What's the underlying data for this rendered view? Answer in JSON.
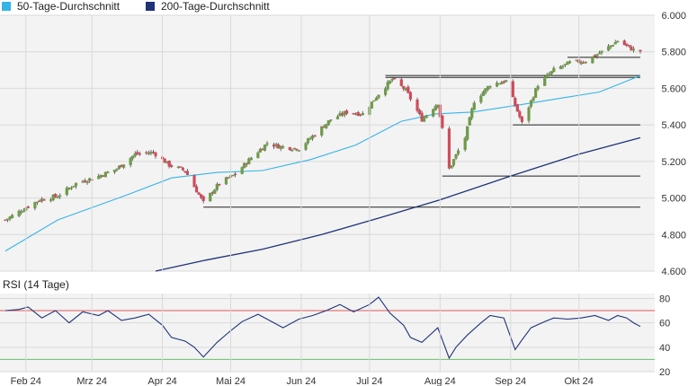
{
  "legend": {
    "ma50_label": "50-Tage-Durchschnitt",
    "ma200_label": "200-Tage-Durchschnitt"
  },
  "rsi_panel": {
    "title": "RSI (14 Tage)"
  },
  "colors": {
    "ma50": "#35b4e6",
    "ma200": "#1f3378",
    "candle_up": "#6f9a4a",
    "candle_down": "#d04a5a",
    "wick": "#444444",
    "rsi_line": "#1f3378",
    "rsi_upper": "#e05a5a",
    "rsi_lower": "#69c069",
    "support_line": "#222222",
    "grid": "#d9d9d9",
    "panel_bg": "#f3f3f3"
  },
  "chart_data": [
    {
      "type": "candlestick",
      "title": "",
      "xlabel": "",
      "ylabel": "",
      "x_start": "2024-01-23",
      "x_end": "2024-10-28",
      "ylim": [
        4600,
        6000
      ],
      "y_ticks": [
        "4.600",
        "4.800",
        "5.000",
        "5.200",
        "5.400",
        "5.600",
        "5.800",
        "6.000"
      ],
      "x_ticks": [
        {
          "date": "2024-02-01",
          "label": "Feb 24"
        },
        {
          "date": "2024-03-01",
          "label": "Mrz 24"
        },
        {
          "date": "2024-04-01",
          "label": "Apr 24"
        },
        {
          "date": "2024-05-01",
          "label": "Mai 24"
        },
        {
          "date": "2024-06-01",
          "label": "Jun 24"
        },
        {
          "date": "2024-07-01",
          "label": "Jul 24"
        },
        {
          "date": "2024-08-01",
          "label": "Aug 24"
        },
        {
          "date": "2024-09-01",
          "label": "Sep 24"
        },
        {
          "date": "2024-10-01",
          "label": "Okt 24"
        }
      ],
      "grid": true,
      "legend_position": "top-left",
      "close_anchors": [
        [
          "2024-01-23",
          4880
        ],
        [
          "2024-01-31",
          4940
        ],
        [
          "2024-02-07",
          4990
        ],
        [
          "2024-02-15",
          5010
        ],
        [
          "2024-02-23",
          5080
        ],
        [
          "2024-03-04",
          5120
        ],
        [
          "2024-03-12",
          5160
        ],
        [
          "2024-03-20",
          5240
        ],
        [
          "2024-03-28",
          5250
        ],
        [
          "2024-04-04",
          5180
        ],
        [
          "2024-04-11",
          5150
        ],
        [
          "2024-04-19",
          4975
        ],
        [
          "2024-04-26",
          5080
        ],
        [
          "2024-05-03",
          5130
        ],
        [
          "2024-05-10",
          5220
        ],
        [
          "2024-05-17",
          5300
        ],
        [
          "2024-05-23",
          5280
        ],
        [
          "2024-05-31",
          5270
        ],
        [
          "2024-06-07",
          5350
        ],
        [
          "2024-06-14",
          5430
        ],
        [
          "2024-06-21",
          5470
        ],
        [
          "2024-06-28",
          5460
        ],
        [
          "2024-07-05",
          5570
        ],
        [
          "2024-07-11",
          5650
        ],
        [
          "2024-07-17",
          5590
        ],
        [
          "2024-07-24",
          5430
        ],
        [
          "2024-07-31",
          5520
        ],
        [
          "2024-08-05",
          5160
        ],
        [
          "2024-08-12",
          5330
        ],
        [
          "2024-08-16",
          5530
        ],
        [
          "2024-08-23",
          5620
        ],
        [
          "2024-08-30",
          5640
        ],
        [
          "2024-09-06",
          5410
        ],
        [
          "2024-09-13",
          5620
        ],
        [
          "2024-09-20",
          5700
        ],
        [
          "2024-09-27",
          5740
        ],
        [
          "2024-10-04",
          5750
        ],
        [
          "2024-10-11",
          5800
        ],
        [
          "2024-10-18",
          5860
        ],
        [
          "2024-10-25",
          5810
        ],
        [
          "2024-10-28",
          5805
        ]
      ],
      "series": [
        {
          "name": "50-Tage-Durchschnitt",
          "x": [
            "2024-01-23",
            "2024-02-15",
            "2024-03-15",
            "2024-04-05",
            "2024-04-25",
            "2024-05-15",
            "2024-06-05",
            "2024-06-25",
            "2024-07-15",
            "2024-07-30",
            "2024-08-15",
            "2024-09-05",
            "2024-09-25",
            "2024-10-10",
            "2024-10-28"
          ],
          "values": [
            4710,
            4880,
            5010,
            5110,
            5140,
            5150,
            5210,
            5290,
            5420,
            5460,
            5470,
            5510,
            5550,
            5580,
            5670
          ]
        },
        {
          "name": "200-Tage-Durchschnitt",
          "x": [
            "2024-03-29",
            "2024-04-20",
            "2024-05-15",
            "2024-06-10",
            "2024-07-05",
            "2024-08-01",
            "2024-09-01",
            "2024-10-01",
            "2024-10-28"
          ],
          "values": [
            4600,
            4660,
            4720,
            4800,
            4890,
            4990,
            5120,
            5240,
            5330
          ]
        }
      ],
      "horizontal_levels": [
        {
          "value": 5770,
          "from": "2024-09-26",
          "to": "2024-10-28"
        },
        {
          "value": 5660,
          "from": "2024-07-08",
          "to": "2024-10-28"
        },
        {
          "value": 5670,
          "from": "2024-07-08",
          "to": "2024-10-28"
        },
        {
          "value": 5400,
          "from": "2024-09-02",
          "to": "2024-10-28"
        },
        {
          "value": 5120,
          "from": "2024-08-02",
          "to": "2024-10-28"
        },
        {
          "value": 4950,
          "from": "2024-04-19",
          "to": "2024-10-28"
        }
      ]
    },
    {
      "type": "line",
      "title": "RSI (14 Tage)",
      "xlabel": "",
      "ylabel": "",
      "ylim": [
        20,
        84
      ],
      "y_ticks": [
        20,
        40,
        60,
        80
      ],
      "upper_band": 70,
      "lower_band": 30,
      "series": [
        {
          "name": "",
          "x": [
            "2024-01-23",
            "2024-01-29",
            "2024-02-02",
            "2024-02-08",
            "2024-02-14",
            "2024-02-20",
            "2024-02-26",
            "2024-03-04",
            "2024-03-08",
            "2024-03-14",
            "2024-03-20",
            "2024-03-26",
            "2024-04-01",
            "2024-04-05",
            "2024-04-11",
            "2024-04-15",
            "2024-04-19",
            "2024-04-25",
            "2024-04-30",
            "2024-05-06",
            "2024-05-13",
            "2024-05-20",
            "2024-05-24",
            "2024-05-31",
            "2024-06-06",
            "2024-06-12",
            "2024-06-18",
            "2024-06-24",
            "2024-07-01",
            "2024-07-05",
            "2024-07-10",
            "2024-07-16",
            "2024-07-19",
            "2024-07-24",
            "2024-07-31",
            "2024-08-05",
            "2024-08-08",
            "2024-08-13",
            "2024-08-19",
            "2024-08-23",
            "2024-08-29",
            "2024-09-03",
            "2024-09-06",
            "2024-09-10",
            "2024-09-16",
            "2024-09-20",
            "2024-09-26",
            "2024-10-02",
            "2024-10-08",
            "2024-10-14",
            "2024-10-18",
            "2024-10-22",
            "2024-10-25",
            "2024-10-28"
          ],
          "values": [
            70,
            71,
            73,
            64,
            70,
            60,
            69,
            66,
            70,
            62,
            64,
            67,
            58,
            48,
            45,
            40,
            32,
            44,
            52,
            61,
            67,
            60,
            56,
            63,
            66,
            70,
            75,
            69,
            75,
            81,
            68,
            58,
            48,
            44,
            56,
            31,
            40,
            50,
            60,
            66,
            64,
            38,
            46,
            56,
            61,
            64,
            63,
            64,
            66,
            62,
            66,
            64,
            60,
            57
          ]
        }
      ]
    }
  ]
}
